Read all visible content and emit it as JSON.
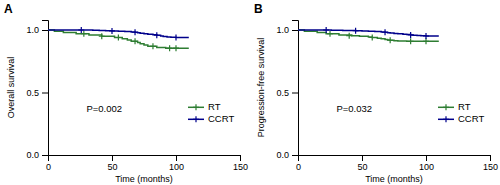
{
  "chart_data": [
    {
      "type": "step",
      "title": "A",
      "annotations": [
        "P=0.002"
      ],
      "xlabel": "Time (months)",
      "ylabel": "Overall survival",
      "xlim": [
        0,
        150
      ],
      "ylim": [
        0.0,
        1.08
      ],
      "xticks": [
        0,
        50,
        100,
        150
      ],
      "yticks": [
        {
          "value": 0.0,
          "label": "0.0"
        },
        0.5,
        {
          "value": 1.0,
          "label": "1.0"
        }
      ],
      "grid": false,
      "legend": "lower right",
      "series": [
        {
          "name": "RT",
          "color": "#2e7d32",
          "marker": "plus",
          "x": [
            0,
            2,
            5,
            8,
            12,
            15,
            18,
            22,
            25,
            28,
            32,
            35,
            38,
            42,
            45,
            48,
            52,
            55,
            58,
            62,
            65,
            68,
            70,
            72,
            75,
            78,
            82,
            85,
            88,
            90,
            92,
            95,
            98,
            100,
            103,
            110
          ],
          "values": [
            1.0,
            1.0,
            0.99,
            0.99,
            0.98,
            0.98,
            0.98,
            0.97,
            0.97,
            0.97,
            0.96,
            0.96,
            0.96,
            0.95,
            0.95,
            0.95,
            0.94,
            0.94,
            0.93,
            0.92,
            0.91,
            0.91,
            0.9,
            0.89,
            0.88,
            0.87,
            0.87,
            0.86,
            0.86,
            0.86,
            0.855,
            0.855,
            0.855,
            0.855,
            0.855,
            0.855
          ],
          "censor_x": [
            28,
            42,
            55,
            68,
            82,
            95,
            100
          ],
          "censor_values": [
            0.97,
            0.95,
            0.94,
            0.91,
            0.87,
            0.855,
            0.855
          ]
        },
        {
          "name": "CCRT",
          "color": "#00008b",
          "marker": "plus",
          "x": [
            0,
            3,
            6,
            10,
            14,
            18,
            22,
            26,
            30,
            35,
            40,
            45,
            50,
            55,
            60,
            65,
            68,
            70,
            72,
            75,
            78,
            82,
            85,
            88,
            90,
            93,
            96,
            100,
            103,
            110
          ],
          "values": [
            1.0,
            1.0,
            1.0,
            1.0,
            1.0,
            1.0,
            1.0,
            1.0,
            1.0,
            0.998,
            0.997,
            0.995,
            0.993,
            0.991,
            0.988,
            0.985,
            0.982,
            0.978,
            0.974,
            0.97,
            0.966,
            0.962,
            0.958,
            0.953,
            0.948,
            0.945,
            0.943,
            0.94,
            0.94,
            0.94
          ],
          "censor_x": [
            26,
            50,
            68,
            85,
            100
          ],
          "censor_values": [
            1.0,
            0.993,
            0.982,
            0.958,
            0.94
          ]
        }
      ]
    },
    {
      "type": "step",
      "title": "B",
      "annotations": [
        "P=0.032"
      ],
      "xlabel": "Time (months)",
      "ylabel": "Progression-free survival",
      "xlim": [
        0,
        150
      ],
      "ylim": [
        0.0,
        1.08
      ],
      "xticks": [
        0,
        50,
        100,
        150
      ],
      "yticks": [
        {
          "value": 0.0,
          "label": "0.0"
        },
        0.5,
        {
          "value": 1.0,
          "label": "1.0"
        }
      ],
      "grid": false,
      "legend": "lower right",
      "series": [
        {
          "name": "RT",
          "color": "#2e7d32",
          "marker": "plus",
          "x": [
            0,
            2,
            5,
            8,
            12,
            15,
            18,
            22,
            25,
            28,
            32,
            35,
            38,
            42,
            45,
            48,
            52,
            55,
            58,
            62,
            65,
            68,
            70,
            72,
            75,
            78,
            82,
            85,
            88,
            90,
            92,
            95,
            98,
            100,
            103,
            110
          ],
          "values": [
            1.0,
            1.0,
            0.99,
            0.99,
            0.99,
            0.98,
            0.98,
            0.97,
            0.97,
            0.97,
            0.96,
            0.96,
            0.96,
            0.955,
            0.955,
            0.95,
            0.95,
            0.945,
            0.94,
            0.935,
            0.93,
            0.925,
            0.92,
            0.918,
            0.915,
            0.913,
            0.912,
            0.91,
            0.91,
            0.91,
            0.91,
            0.91,
            0.91,
            0.91,
            0.91,
            0.91
          ],
          "censor_x": [
            25,
            40,
            58,
            72,
            88,
            100
          ],
          "censor_values": [
            0.97,
            0.955,
            0.94,
            0.918,
            0.91,
            0.91
          ]
        },
        {
          "name": "CCRT",
          "color": "#00008b",
          "marker": "plus",
          "x": [
            0,
            3,
            6,
            10,
            14,
            18,
            22,
            26,
            30,
            35,
            40,
            45,
            50,
            55,
            60,
            65,
            68,
            70,
            72,
            75,
            78,
            82,
            85,
            88,
            90,
            93,
            96,
            100,
            103,
            110
          ],
          "values": [
            1.0,
            1.0,
            1.0,
            1.0,
            1.0,
            1.0,
            1.0,
            0.999,
            0.998,
            0.997,
            0.996,
            0.994,
            0.992,
            0.99,
            0.988,
            0.985,
            0.982,
            0.979,
            0.976,
            0.973,
            0.97,
            0.967,
            0.964,
            0.961,
            0.958,
            0.956,
            0.954,
            0.952,
            0.952,
            0.952
          ],
          "censor_x": [
            22,
            45,
            68,
            88,
            100
          ],
          "censor_values": [
            1.0,
            0.994,
            0.982,
            0.961,
            0.952
          ]
        }
      ]
    }
  ]
}
